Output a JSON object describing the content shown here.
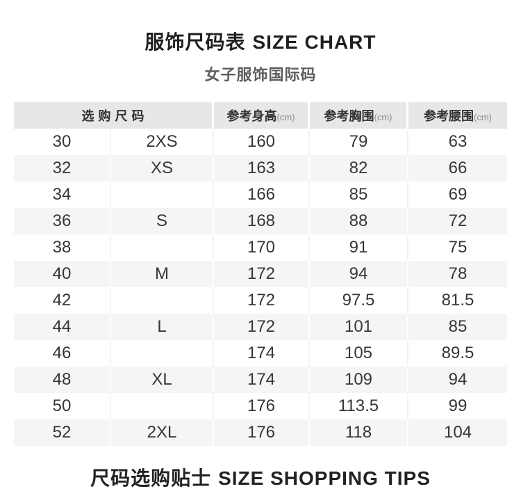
{
  "header": {
    "title_zh": "服饰尺码表",
    "title_en": "SIZE CHART",
    "subtitle": "女子服饰国际码"
  },
  "table": {
    "header": {
      "size_label": "选购尺码",
      "columns": [
        {
          "label": "参考身高",
          "unit": "(cm)"
        },
        {
          "label": "参考胸围",
          "unit": "(cm)"
        },
        {
          "label": "参考腰围",
          "unit": "(cm)"
        }
      ]
    },
    "rows": [
      {
        "num": "30",
        "alpha": "2XS",
        "height": "160",
        "chest": "79",
        "waist": "63"
      },
      {
        "num": "32",
        "alpha": "XS",
        "height": "163",
        "chest": "82",
        "waist": "66"
      },
      {
        "num": "34",
        "alpha": "",
        "height": "166",
        "chest": "85",
        "waist": "69"
      },
      {
        "num": "36",
        "alpha": "S",
        "height": "168",
        "chest": "88",
        "waist": "72"
      },
      {
        "num": "38",
        "alpha": "",
        "height": "170",
        "chest": "91",
        "waist": "75"
      },
      {
        "num": "40",
        "alpha": "M",
        "height": "172",
        "chest": "94",
        "waist": "78"
      },
      {
        "num": "42",
        "alpha": "",
        "height": "172",
        "chest": "97.5",
        "waist": "81.5"
      },
      {
        "num": "44",
        "alpha": "L",
        "height": "172",
        "chest": "101",
        "waist": "85"
      },
      {
        "num": "46",
        "alpha": "",
        "height": "174",
        "chest": "105",
        "waist": "89.5"
      },
      {
        "num": "48",
        "alpha": "XL",
        "height": "174",
        "chest": "109",
        "waist": "94"
      },
      {
        "num": "50",
        "alpha": "",
        "height": "176",
        "chest": "113.5",
        "waist": "99"
      },
      {
        "num": "52",
        "alpha": "2XL",
        "height": "176",
        "chest": "118",
        "waist": "104"
      }
    ]
  },
  "footer": {
    "title_zh": "尺码选购贴士",
    "title_en": "SIZE SHOPPING TIPS"
  },
  "colors": {
    "header_bg": "#e7e7e7",
    "stripe_bg": "#f5f5f5",
    "title_text": "#1f1f1f",
    "subtitle_text": "#5d5d5d",
    "body_text": "#363636",
    "unit_text": "#8b8b8b"
  }
}
